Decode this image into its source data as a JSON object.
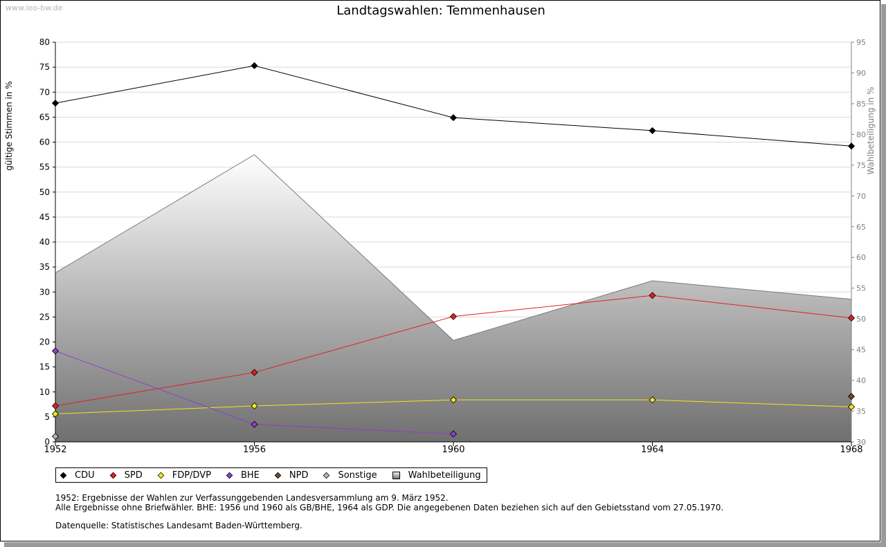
{
  "watermark": "www.leo-bw.de",
  "chart_data": {
    "type": "line",
    "title": "Landtagswahlen: Temmenhausen",
    "ylabel": "gültige Stimmen in %",
    "y2label": "Wahlbeteiligung in %",
    "xlabel": "",
    "x": [
      1952,
      1956,
      1960,
      1964,
      1968
    ],
    "xlim": [
      1952,
      1968
    ],
    "ylim": [
      0,
      80
    ],
    "y2lim": [
      30,
      95
    ],
    "yticks": [
      0,
      5,
      10,
      15,
      20,
      25,
      30,
      35,
      40,
      45,
      50,
      55,
      60,
      65,
      70,
      75,
      80
    ],
    "y2ticks": [
      30,
      35,
      40,
      45,
      50,
      55,
      60,
      65,
      70,
      75,
      80,
      85,
      90,
      95
    ],
    "grid": true,
    "series": [
      {
        "name": "CDU",
        "color": "#000000",
        "values": [
          67.8,
          75.3,
          64.9,
          62.3,
          59.2
        ]
      },
      {
        "name": "SPD",
        "color": "#e31e24",
        "values": [
          7.2,
          13.9,
          25.1,
          29.3,
          24.8
        ]
      },
      {
        "name": "FDP/DVP",
        "color": "#f0e61e",
        "values": [
          5.6,
          7.2,
          8.4,
          8.4,
          7.0
        ]
      },
      {
        "name": "BHE",
        "color": "#8e3fc8",
        "values": [
          18.2,
          3.5,
          1.6,
          null,
          null
        ]
      },
      {
        "name": "NPD",
        "color": "#6b4a32",
        "values": [
          null,
          null,
          null,
          null,
          9.1
        ]
      },
      {
        "name": "Sonstige",
        "color": "#b4b4b4",
        "values": [
          1.1,
          null,
          null,
          null,
          null
        ]
      }
    ],
    "area": {
      "name": "Wahlbeteiligung",
      "axis": "right",
      "values": [
        57.5,
        76.7,
        46.5,
        56.2,
        53.2
      ]
    }
  },
  "notes": {
    "line1": "1952: Ergebnisse der Wahlen zur Verfassunggebenden Landesversammlung am 9. März 1952.",
    "line2": "Alle Ergebnisse ohne Briefwähler. BHE: 1956 und 1960 als GB/BHE, 1964 als GDP. Die angegebenen Daten beziehen sich auf den Gebietsstand vom 27.05.1970.",
    "source": "Datenquelle: Statistisches Landesamt Baden-Württemberg."
  }
}
